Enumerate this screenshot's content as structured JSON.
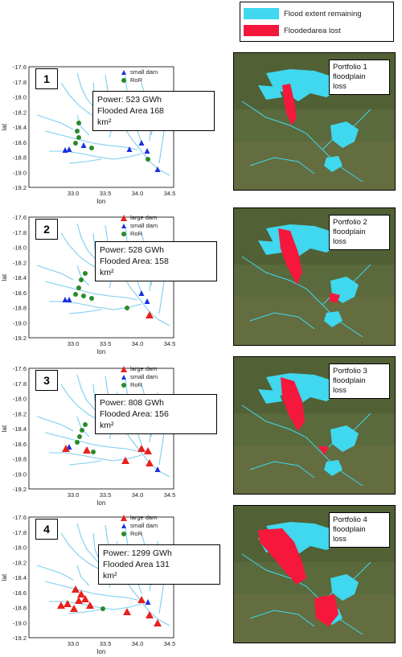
{
  "legend": {
    "flood_remaining": "Flood extent remaining",
    "flooded_lost": "Floodedarea lost",
    "color_remaining": "#3fd8ef",
    "color_lost": "#f5183c"
  },
  "axes": {
    "xlabel": "lon",
    "ylabel": "lat",
    "yticks": [
      "-17.6",
      "-17.8",
      "-18.0",
      "-18.2",
      "-18.4",
      "-18.6",
      "-18.8",
      "-19.0",
      "-19.2"
    ],
    "xticks": [
      "33.0",
      "33.5",
      "34.0",
      "34.5"
    ]
  },
  "panels": [
    {
      "number": "1",
      "legend": [
        "small dam",
        "RoR"
      ],
      "info": "Power: 523 GWh\nFlooded Area 168\nkm²",
      "sat_label": "Portfolio 1\nfloodplain\nloss"
    },
    {
      "number": "2",
      "legend": [
        "large dam",
        "small dam",
        "RoR"
      ],
      "info": "Power: 528 GWh\nFlooded Area: 158\nkm²",
      "sat_label": "Portfolio 2\nfloodplain\nloss"
    },
    {
      "number": "3",
      "legend": [
        "large dam",
        "small dam",
        "RoR"
      ],
      "info": "Power: 808 GWh\nFlooded Area: 156\nkm²",
      "sat_label": "Portfolio 3\nfloodplain\nloss"
    },
    {
      "number": "4",
      "legend": [
        "large dam",
        "small dam",
        "RoR"
      ],
      "info": "Power: 1299 GWh\nFlooded Area 131\nkm²",
      "sat_label": "Portfolio 4\nfloodplain\nloss"
    }
  ],
  "colors": {
    "river": "#7ccdf0",
    "large_dam": "#e8201e",
    "small_dam": "#1a2fe0",
    "ror": "#2a8a2a",
    "satellite_bg": "#5a6a3c"
  }
}
